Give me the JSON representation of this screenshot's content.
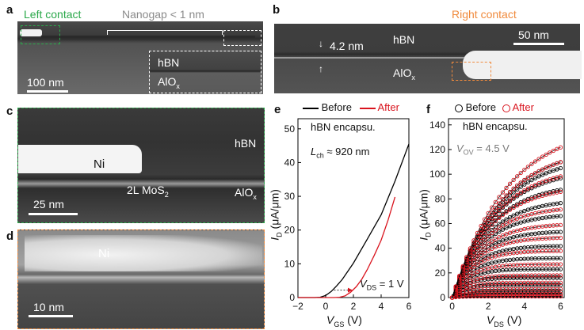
{
  "panels": {
    "a": {
      "label": "a",
      "left_contact": "Left contact",
      "nanogap": "Nanogap < 1 nm",
      "inset_hbn": "hBN",
      "inset_alox": "AlO",
      "inset_alox_sub": "x",
      "scale": "100 nm"
    },
    "b": {
      "label": "b",
      "right_contact": "Right contact",
      "thickness": "4.2 nm",
      "hbn": "hBN",
      "alox": "AlO",
      "alox_sub": "x",
      "scale": "50 nm"
    },
    "c": {
      "label": "c",
      "ni": "Ni",
      "hbn": "hBN",
      "mos2": "2L MoS",
      "mos2_sub": "2",
      "alox": "AlO",
      "alox_sub": "x",
      "scale": "25 nm"
    },
    "d": {
      "label": "d",
      "ni": "Ni",
      "scale": "10 nm"
    },
    "e": {
      "label": "e",
      "legend_before": "Before",
      "legend_after": "After",
      "annot_encap": "hBN encapsu.",
      "annot_lch_sym": "L",
      "annot_lch_sub": "ch",
      "annot_lch_val": " ≈ 920 nm",
      "annot_vds_sym": "V",
      "annot_vds_sub": "DS",
      "annot_vds_val": " = 1 V",
      "ylabel_main": "I",
      "ylabel_sub": "D",
      "ylabel_unit": " (μA/μm)",
      "xlabel_main": "V",
      "xlabel_sub": "GS",
      "xlabel_unit": " (V)"
    },
    "f": {
      "label": "f",
      "legend_before": "Before",
      "legend_after": "After",
      "annot_encap": "hBN encapsu.",
      "annot_vov_sym": "V",
      "annot_vov_sub": "OV",
      "annot_vov_val": " = 4.5 V",
      "ylabel_main": "I",
      "ylabel_sub": "D",
      "ylabel_unit": " (μA/μm)",
      "xlabel_main": "V",
      "xlabel_sub": "DS",
      "xlabel_unit": " (V)"
    }
  },
  "colors": {
    "before": "#000000",
    "after": "#d9141e",
    "left_contact": "#2aa84a",
    "right_contact": "#f08a3c"
  },
  "chart_data": [
    {
      "type": "line",
      "xlim": [
        -2,
        6
      ],
      "ylim": [
        0,
        53
      ],
      "xticks": [
        -2,
        0,
        2,
        4,
        6
      ],
      "yticks": [
        0,
        10,
        20,
        30,
        40,
        50
      ],
      "series": [
        {
          "name": "Before",
          "x": [
            -2,
            -0.8,
            -0.4,
            0,
            0.4,
            0.8,
            1.2,
            2,
            3,
            4,
            5,
            6
          ],
          "y": [
            0,
            0,
            0.1,
            0.6,
            1.8,
            3.5,
            5.4,
            10.2,
            17.3,
            24.5,
            34.5,
            45.5
          ]
        },
        {
          "name": "After",
          "x": [
            -2,
            0.6,
            1.0,
            1.4,
            1.8,
            2.2,
            2.6,
            3,
            3.5,
            4,
            4.5,
            5
          ],
          "y": [
            0,
            0,
            0.1,
            0.5,
            1.6,
            3.2,
            5.4,
            8.3,
            12.5,
            17.0,
            23.0,
            29.8
          ]
        }
      ]
    },
    {
      "type": "scatter",
      "xlim": [
        -0.2,
        6.2
      ],
      "ylim": [
        0,
        145
      ],
      "xticks": [
        0,
        2,
        4,
        6
      ],
      "yticks": [
        0,
        20,
        40,
        60,
        80,
        100,
        120,
        140
      ],
      "x": [
        0,
        0.2,
        0.4,
        0.6,
        0.8,
        1,
        1.2,
        1.4,
        1.6,
        1.8,
        2,
        2.2,
        2.4,
        2.6,
        2.8,
        3,
        3.2,
        3.4,
        3.6,
        3.8,
        4,
        4.2,
        4.4,
        4.6,
        4.8,
        5,
        5.2,
        5.4,
        5.6,
        5.8,
        6
      ],
      "series": [
        {
          "name": "Before",
          "saturation": [
            2,
            5,
            10,
            16,
            23,
            32,
            42,
            54,
            68,
            80,
            93,
            105,
            116,
            123
          ]
        },
        {
          "name": "After",
          "saturation": [
            1,
            3,
            7,
            12,
            18,
            27,
            38,
            49,
            60,
            74,
            91,
            107,
            123,
            141
          ]
        }
      ]
    }
  ]
}
